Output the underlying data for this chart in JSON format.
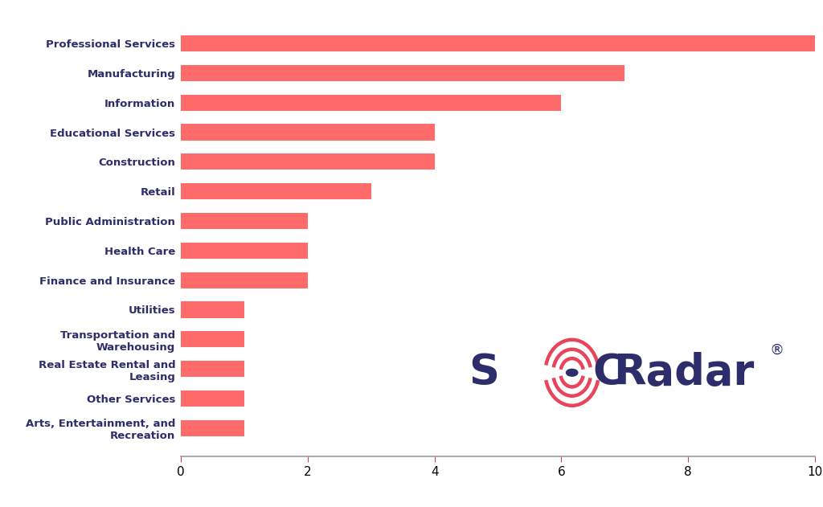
{
  "categories": [
    "Professional Services",
    "Manufacturing",
    "Information",
    "Educational Services",
    "Construction",
    "Retail",
    "Public Administration",
    "Health Care",
    "Finance and Insurance",
    "Utilities",
    "Transportation and\nWarehousing",
    "Real Estate Rental and\nLeasing",
    "Other Services",
    "Arts, Entertainment, and\nRecreation"
  ],
  "values": [
    10,
    7,
    6,
    4,
    4,
    3,
    2,
    2,
    2,
    1,
    1,
    1,
    1,
    1
  ],
  "bar_color": "#FF6B6B",
  "background_color": "#FFFFFF",
  "label_color": "#2D2D6B",
  "label_fontsize": 9.5,
  "tick_fontsize": 11,
  "xlim": [
    0,
    10
  ],
  "xticks": [
    0,
    2,
    4,
    6,
    8,
    10
  ],
  "logo_text_color": "#2D2D6B",
  "logo_arc_color1": "#E8445A",
  "logo_arc_color2": "#E8445A",
  "logo_dot_color": "#2D2D6B",
  "spine_color": "#999999",
  "xtick_color": "#CC4444"
}
